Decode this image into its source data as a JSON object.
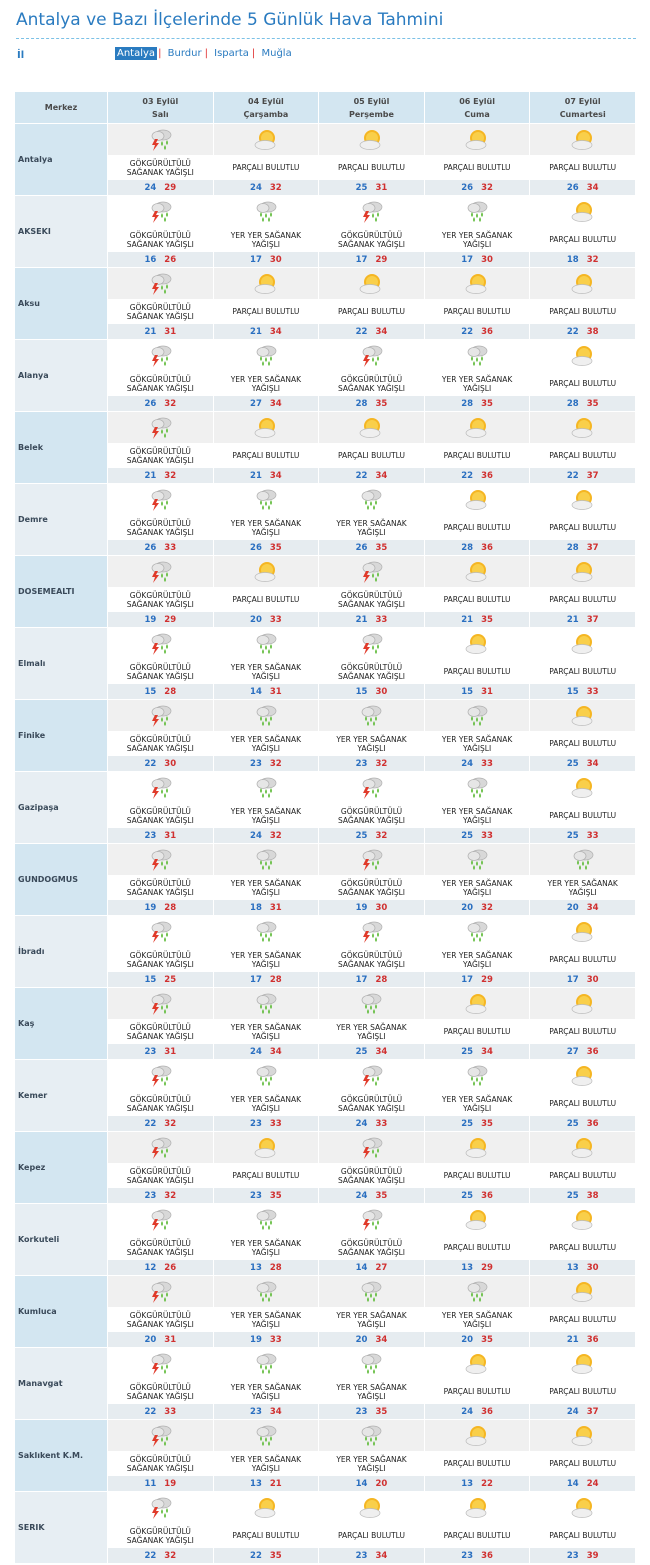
{
  "page_title": "Antalya ve Bazı İlçelerinde 5 Günlük Hava Tahmini",
  "il_label": "İl",
  "provinces": [
    {
      "label": "Antalya",
      "active": true
    },
    {
      "label": "Burdur",
      "active": false
    },
    {
      "label": "Isparta",
      "active": false
    },
    {
      "label": "Muğla",
      "active": false
    }
  ],
  "header": {
    "merkez": "Merkez",
    "days": [
      {
        "date": "03 Eylül",
        "day": "Salı"
      },
      {
        "date": "04 Eylül",
        "day": "Çarşamba"
      },
      {
        "date": "05 Eylül",
        "day": "Perşembe"
      },
      {
        "date": "06 Eylül",
        "day": "Cuma"
      },
      {
        "date": "07 Eylül",
        "day": "Cumartesi"
      }
    ]
  },
  "conditions": {
    "T": {
      "line1": "GÖKGÜRÜLTÜLÜ",
      "line2": "SAĞANAK YAĞIŞLI",
      "icon": "thunderstorm-icon"
    },
    "R": {
      "line1": "YER YER SAĞANAK",
      "line2": "YAĞIŞLI",
      "icon": "rain-shower-icon"
    },
    "P": {
      "line1": "PARÇALI BULUTLU",
      "line2": "",
      "icon": "partly-cloudy-icon"
    }
  },
  "rows": [
    {
      "city": "Antalya",
      "days": [
        [
          "T",
          24,
          29
        ],
        [
          "P",
          24,
          32
        ],
        [
          "P",
          25,
          31
        ],
        [
          "P",
          26,
          32
        ],
        [
          "P",
          26,
          34
        ]
      ]
    },
    {
      "city": "AKSEKI",
      "days": [
        [
          "T",
          16,
          26
        ],
        [
          "R",
          17,
          30
        ],
        [
          "T",
          17,
          29
        ],
        [
          "R",
          17,
          30
        ],
        [
          "P",
          18,
          32
        ]
      ]
    },
    {
      "city": "Aksu",
      "days": [
        [
          "T",
          21,
          31
        ],
        [
          "P",
          21,
          34
        ],
        [
          "P",
          22,
          34
        ],
        [
          "P",
          22,
          36
        ],
        [
          "P",
          22,
          38
        ]
      ]
    },
    {
      "city": "Alanya",
      "days": [
        [
          "T",
          26,
          32
        ],
        [
          "R",
          27,
          34
        ],
        [
          "T",
          28,
          35
        ],
        [
          "R",
          28,
          35
        ],
        [
          "P",
          28,
          35
        ]
      ]
    },
    {
      "city": "Belek",
      "days": [
        [
          "T",
          21,
          32
        ],
        [
          "P",
          21,
          34
        ],
        [
          "P",
          22,
          34
        ],
        [
          "P",
          22,
          36
        ],
        [
          "P",
          22,
          37
        ]
      ]
    },
    {
      "city": "Demre",
      "days": [
        [
          "T",
          26,
          33
        ],
        [
          "R",
          26,
          35
        ],
        [
          "R",
          26,
          35
        ],
        [
          "P",
          28,
          36
        ],
        [
          "P",
          28,
          37
        ]
      ]
    },
    {
      "city": "DOSEMEALTI",
      "days": [
        [
          "T",
          19,
          29
        ],
        [
          "P",
          20,
          33
        ],
        [
          "T",
          21,
          33
        ],
        [
          "P",
          21,
          35
        ],
        [
          "P",
          21,
          37
        ]
      ]
    },
    {
      "city": "Elmalı",
      "days": [
        [
          "T",
          15,
          28
        ],
        [
          "R",
          14,
          31
        ],
        [
          "T",
          15,
          30
        ],
        [
          "P",
          15,
          31
        ],
        [
          "P",
          15,
          33
        ]
      ]
    },
    {
      "city": "Finike",
      "days": [
        [
          "T",
          22,
          30
        ],
        [
          "R",
          23,
          32
        ],
        [
          "R",
          23,
          32
        ],
        [
          "R",
          24,
          33
        ],
        [
          "P",
          25,
          34
        ]
      ]
    },
    {
      "city": "Gazipaşa",
      "days": [
        [
          "T",
          23,
          31
        ],
        [
          "R",
          24,
          32
        ],
        [
          "T",
          25,
          32
        ],
        [
          "R",
          25,
          33
        ],
        [
          "P",
          25,
          33
        ]
      ]
    },
    {
      "city": "GUNDOGMUS",
      "days": [
        [
          "T",
          19,
          28
        ],
        [
          "R",
          18,
          31
        ],
        [
          "T",
          19,
          30
        ],
        [
          "R",
          20,
          32
        ],
        [
          "R",
          20,
          34
        ]
      ]
    },
    {
      "city": "İbradı",
      "days": [
        [
          "T",
          15,
          25
        ],
        [
          "R",
          17,
          28
        ],
        [
          "T",
          17,
          28
        ],
        [
          "R",
          17,
          29
        ],
        [
          "P",
          17,
          30
        ]
      ]
    },
    {
      "city": "Kaş",
      "days": [
        [
          "T",
          23,
          31
        ],
        [
          "R",
          24,
          34
        ],
        [
          "R",
          25,
          34
        ],
        [
          "P",
          25,
          34
        ],
        [
          "P",
          27,
          36
        ]
      ]
    },
    {
      "city": "Kemer",
      "days": [
        [
          "T",
          22,
          32
        ],
        [
          "R",
          23,
          33
        ],
        [
          "T",
          24,
          33
        ],
        [
          "R",
          25,
          35
        ],
        [
          "P",
          25,
          36
        ]
      ]
    },
    {
      "city": "Kepez",
      "days": [
        [
          "T",
          23,
          32
        ],
        [
          "P",
          23,
          35
        ],
        [
          "T",
          24,
          35
        ],
        [
          "P",
          25,
          36
        ],
        [
          "P",
          25,
          38
        ]
      ]
    },
    {
      "city": "Korkuteli",
      "days": [
        [
          "T",
          12,
          26
        ],
        [
          "R",
          13,
          28
        ],
        [
          "T",
          14,
          27
        ],
        [
          "P",
          13,
          29
        ],
        [
          "P",
          13,
          30
        ]
      ]
    },
    {
      "city": "Kumluca",
      "days": [
        [
          "T",
          20,
          31
        ],
        [
          "R",
          19,
          33
        ],
        [
          "R",
          20,
          34
        ],
        [
          "R",
          20,
          35
        ],
        [
          "P",
          21,
          36
        ]
      ]
    },
    {
      "city": "Manavgat",
      "days": [
        [
          "T",
          22,
          33
        ],
        [
          "R",
          23,
          34
        ],
        [
          "R",
          23,
          35
        ],
        [
          "P",
          24,
          36
        ],
        [
          "P",
          24,
          37
        ]
      ]
    },
    {
      "city": "Saklıkent K.M.",
      "days": [
        [
          "T",
          11,
          19
        ],
        [
          "R",
          13,
          21
        ],
        [
          "R",
          14,
          20
        ],
        [
          "P",
          13,
          22
        ],
        [
          "P",
          14,
          24
        ]
      ]
    },
    {
      "city": "SERIK",
      "days": [
        [
          "T",
          22,
          32
        ],
        [
          "P",
          22,
          35
        ],
        [
          "P",
          23,
          34
        ],
        [
          "P",
          23,
          36
        ],
        [
          "P",
          23,
          39
        ]
      ]
    }
  ],
  "colors": {
    "accent": "#2a7bc0",
    "min_temp": "#2a6fc0",
    "max_temp": "#d03030",
    "header_bg": "#d3e6f1"
  }
}
